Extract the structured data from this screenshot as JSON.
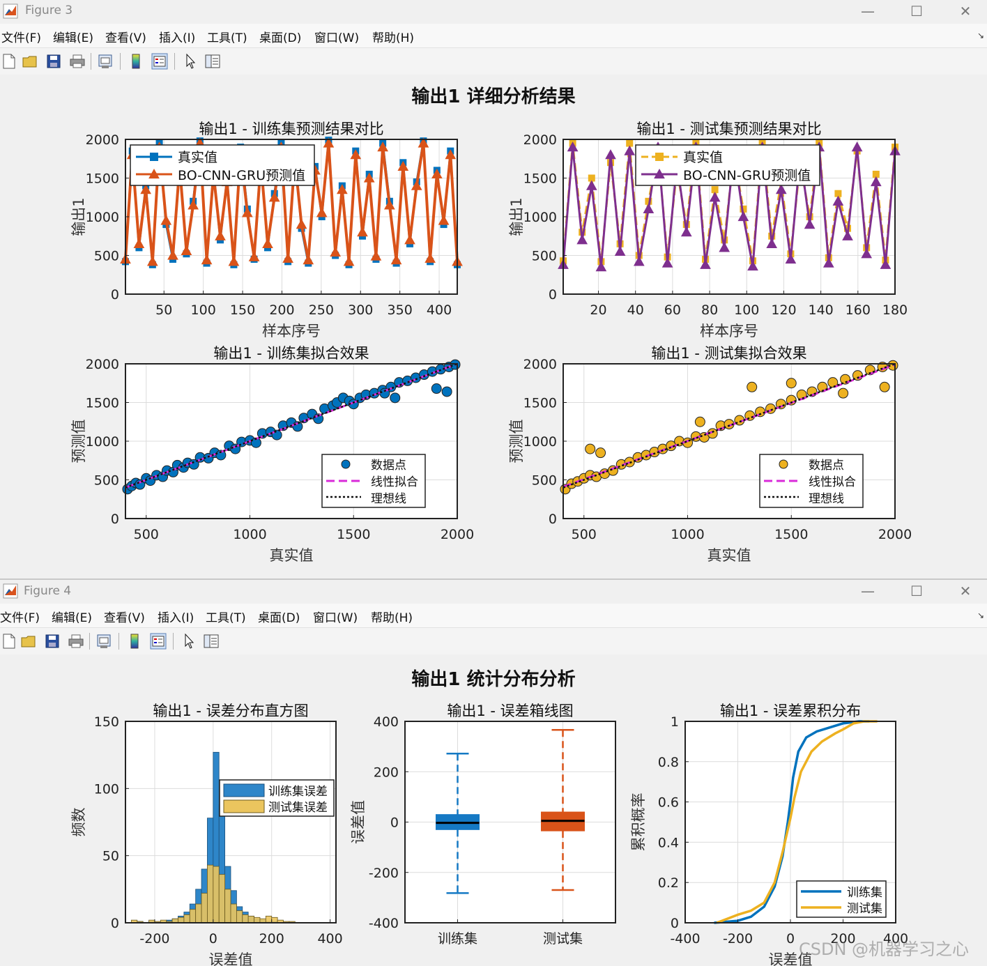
{
  "figure3": {
    "window_title": "Figure 3",
    "menu": [
      "文件(F)",
      "编辑(E)",
      "查看(V)",
      "插入(I)",
      "工具(T)",
      "桌面(D)",
      "窗口(W)",
      "帮助(H)"
    ],
    "suptitle": "输出1 详细分析结果"
  },
  "figure4": {
    "window_title": "Figure 4",
    "menu": [
      "文件(F)",
      "编辑(E)",
      "查看(V)",
      "插入(I)",
      "工具(T)",
      "桌面(D)",
      "窗口(W)",
      "帮助(H)"
    ],
    "suptitle": "输出1 统计分布分析"
  },
  "toolbar_icons": [
    "new-file-icon",
    "open-folder-icon",
    "save-icon",
    "print-icon",
    "print-preview-icon",
    "colorbar-icon",
    "legend-icon",
    "pointer-icon",
    "property-editor-icon"
  ],
  "window_controls": {
    "minimize": "—",
    "maximize": "☐",
    "close": "✕"
  },
  "watermark": "CSDN @机器学习之心",
  "colors": {
    "blue": "#0072BD",
    "orange": "#D95319",
    "yellow": "#EDB120",
    "purple": "#7E2F8E",
    "magenta": "#D92AD9",
    "fill_blue": "#2E86C9",
    "fill_yellow": "#EBC55E",
    "box_blue": "#1579C4",
    "box_orange": "#D95319"
  },
  "chart_data": [
    {
      "id": "train-pred",
      "type": "line",
      "title": "输出1 - 训练集预测结果对比",
      "xlabel": "样本序号",
      "ylabel": "输出1",
      "xlim": [
        1,
        423
      ],
      "ylim": [
        0,
        2000
      ],
      "xticks": [
        50,
        100,
        150,
        200,
        250,
        300,
        350,
        400
      ],
      "yticks": [
        0,
        500,
        1000,
        1500,
        2000
      ],
      "legend": [
        "真实值",
        "BO-CNN-GRU预测值"
      ],
      "series": [
        {
          "name": "真实值",
          "values": [
            420,
            1850,
            600,
            1400,
            380,
            1950,
            900,
            450,
            1700,
            520,
            1200,
            1980,
            400,
            1600,
            700,
            1500,
            380,
            1900,
            1100,
            450,
            1750,
            600,
            1300,
            1950,
            420,
            1800,
            850,
            400,
            1650,
            1000,
            1990,
            500,
            1400,
            380,
            1850,
            750,
            1550,
            450,
            1950,
            1200,
            400,
            1700,
            650,
            1450,
            1980,
            420,
            1600,
            900,
            1850,
            380
          ]
        },
        {
          "name": "BO-CNN-GRU预测值",
          "values": [
            450,
            1800,
            650,
            1350,
            420,
            1900,
            950,
            500,
            1650,
            560,
            1150,
            1950,
            440,
            1550,
            750,
            1450,
            420,
            1850,
            1050,
            480,
            1700,
            650,
            1250,
            1900,
            460,
            1750,
            900,
            440,
            1600,
            1050,
            1950,
            540,
            1350,
            420,
            1800,
            800,
            1500,
            490,
            1900,
            1150,
            440,
            1650,
            700,
            1400,
            1950,
            460,
            1550,
            950,
            1800,
            420
          ]
        }
      ]
    },
    {
      "id": "test-pred",
      "type": "line",
      "title": "输出1 - 测试集预测结果对比",
      "xlabel": "样本序号",
      "ylabel": "输出1",
      "xlim": [
        1,
        180
      ],
      "ylim": [
        0,
        2000
      ],
      "xticks": [
        20,
        40,
        60,
        80,
        100,
        120,
        140,
        160,
        180
      ],
      "yticks": [
        0,
        500,
        1000,
        1500,
        2000
      ],
      "legend": [
        "真实值",
        "BO-CNN-GRU预测值"
      ],
      "series": [
        {
          "name": "真实值",
          "values": [
            430,
            1950,
            800,
            1500,
            420,
            1700,
            650,
            1950,
            500,
            1200,
            1850,
            480,
            1600,
            900,
            1950,
            450,
            1350,
            700,
            1800,
            1100,
            430,
            1950,
            750,
            1450,
            520,
            1700,
            1000,
            1950,
            470,
            1300,
            850,
            1850,
            600,
            1550,
            440,
            1900
          ]
        },
        {
          "name": "BO-CNN-GRU预测值",
          "values": [
            380,
            1900,
            700,
            1400,
            350,
            1800,
            550,
            1850,
            420,
            1100,
            1900,
            400,
            1700,
            800,
            1900,
            380,
            1250,
            600,
            1850,
            1000,
            360,
            1900,
            650,
            1350,
            450,
            1800,
            900,
            1900,
            400,
            1200,
            750,
            1900,
            520,
            1450,
            380,
            1850
          ]
        }
      ]
    },
    {
      "id": "train-fit",
      "type": "scatter",
      "title": "输出1 - 训练集拟合效果",
      "xlabel": "真实值",
      "ylabel": "预测值",
      "xlim": [
        400,
        2000
      ],
      "ylim": [
        0,
        2000
      ],
      "xticks": [
        500,
        1000,
        1500,
        2000
      ],
      "yticks": [
        0,
        500,
        1000,
        1500,
        2000
      ],
      "legend": [
        "数据点",
        "线性拟合",
        "理想线"
      ],
      "points": [
        [
          410,
          380
        ],
        [
          430,
          420
        ],
        [
          450,
          460
        ],
        [
          470,
          440
        ],
        [
          500,
          520
        ],
        [
          520,
          490
        ],
        [
          550,
          560
        ],
        [
          580,
          540
        ],
        [
          600,
          620
        ],
        [
          630,
          600
        ],
        [
          650,
          690
        ],
        [
          680,
          660
        ],
        [
          700,
          720
        ],
        [
          730,
          700
        ],
        [
          760,
          790
        ],
        [
          800,
          780
        ],
        [
          830,
          850
        ],
        [
          860,
          820
        ],
        [
          900,
          940
        ],
        [
          930,
          900
        ],
        [
          960,
          990
        ],
        [
          1000,
          1010
        ],
        [
          1030,
          980
        ],
        [
          1060,
          1100
        ],
        [
          1100,
          1120
        ],
        [
          1130,
          1080
        ],
        [
          1160,
          1200
        ],
        [
          1200,
          1240
        ],
        [
          1230,
          1190
        ],
        [
          1260,
          1300
        ],
        [
          1300,
          1350
        ],
        [
          1330,
          1290
        ],
        [
          1360,
          1420
        ],
        [
          1400,
          1460
        ],
        [
          1420,
          1500
        ],
        [
          1450,
          1560
        ],
        [
          1480,
          1520
        ],
        [
          1500,
          1480
        ],
        [
          1530,
          1560
        ],
        [
          1560,
          1600
        ],
        [
          1600,
          1620
        ],
        [
          1640,
          1660
        ],
        [
          1680,
          1700
        ],
        [
          1720,
          1760
        ],
        [
          1760,
          1780
        ],
        [
          1800,
          1820
        ],
        [
          1840,
          1860
        ],
        [
          1880,
          1900
        ],
        [
          1920,
          1930
        ],
        [
          1960,
          1960
        ],
        [
          1990,
          1990
        ],
        [
          1950,
          1640
        ],
        [
          1900,
          1680
        ],
        [
          1700,
          1560
        ],
        [
          1650,
          1620
        ]
      ],
      "fit": [
        [
          400,
          400
        ],
        [
          2000,
          2000
        ]
      ],
      "ideal": [
        [
          400,
          400
        ],
        [
          2000,
          2000
        ]
      ]
    },
    {
      "id": "test-fit",
      "type": "scatter",
      "title": "输出1 - 测试集拟合效果",
      "xlabel": "真实值",
      "ylabel": "预测值",
      "xlim": [
        400,
        2000
      ],
      "ylim": [
        0,
        2000
      ],
      "xticks": [
        500,
        1000,
        1500,
        2000
      ],
      "yticks": [
        0,
        500,
        1000,
        1500,
        2000
      ],
      "legend": [
        "数据点",
        "线性拟合",
        "理想线"
      ],
      "points": [
        [
          410,
          380
        ],
        [
          440,
          450
        ],
        [
          470,
          480
        ],
        [
          500,
          520
        ],
        [
          530,
          560
        ],
        [
          560,
          540
        ],
        [
          600,
          580
        ],
        [
          640,
          620
        ],
        [
          680,
          700
        ],
        [
          720,
          730
        ],
        [
          760,
          790
        ],
        [
          800,
          820
        ],
        [
          840,
          860
        ],
        [
          880,
          900
        ],
        [
          920,
          940
        ],
        [
          960,
          1000
        ],
        [
          1000,
          980
        ],
        [
          1040,
          1060
        ],
        [
          1080,
          1050
        ],
        [
          1120,
          1100
        ],
        [
          1160,
          1200
        ],
        [
          1200,
          1220
        ],
        [
          1250,
          1270
        ],
        [
          1300,
          1330
        ],
        [
          1350,
          1380
        ],
        [
          1400,
          1420
        ],
        [
          1450,
          1480
        ],
        [
          1500,
          1530
        ],
        [
          1550,
          1600
        ],
        [
          1600,
          1640
        ],
        [
          1650,
          1700
        ],
        [
          1700,
          1760
        ],
        [
          1760,
          1800
        ],
        [
          1820,
          1850
        ],
        [
          1880,
          1920
        ],
        [
          1940,
          1960
        ],
        [
          1990,
          1980
        ],
        [
          530,
          900
        ],
        [
          580,
          850
        ],
        [
          1060,
          1250
        ],
        [
          1310,
          1700
        ],
        [
          1500,
          1750
        ],
        [
          1750,
          1620
        ],
        [
          1950,
          1700
        ]
      ],
      "fit": [
        [
          400,
          410
        ],
        [
          2000,
          1990
        ]
      ],
      "ideal": [
        [
          400,
          400
        ],
        [
          2000,
          2000
        ]
      ]
    },
    {
      "id": "error-hist",
      "type": "bar",
      "title": "输出1 - 误差分布直方图",
      "xlabel": "误差值",
      "ylabel": "频数",
      "xlim": [
        -300,
        420
      ],
      "ylim": [
        0,
        150
      ],
      "xticks": [
        -200,
        0,
        200,
        400
      ],
      "yticks": [
        0,
        50,
        100,
        150
      ],
      "legend": [
        "训练集误差",
        "测试集误差"
      ],
      "bin_width": 20,
      "bins": [
        -280,
        -260,
        -240,
        -220,
        -200,
        -180,
        -160,
        -140,
        -120,
        -100,
        -80,
        -60,
        -40,
        -20,
        0,
        20,
        40,
        60,
        80,
        100,
        120,
        140,
        160,
        180,
        200,
        220,
        240,
        260,
        280,
        300,
        320
      ],
      "series": [
        {
          "name": "训练集误差",
          "values": [
            0,
            1,
            0,
            1,
            0,
            1,
            2,
            3,
            5,
            8,
            14,
            25,
            40,
            78,
            127,
            88,
            42,
            24,
            12,
            8,
            5,
            3,
            2,
            1,
            1,
            0,
            0,
            0,
            0,
            0,
            0
          ]
        },
        {
          "name": "测试集误差",
          "values": [
            2,
            1,
            0,
            2,
            1,
            2,
            1,
            3,
            4,
            6,
            10,
            14,
            22,
            43,
            42,
            36,
            25,
            14,
            9,
            6,
            5,
            4,
            3,
            5,
            4,
            2,
            1,
            1,
            0,
            0,
            0
          ]
        }
      ]
    },
    {
      "id": "error-box",
      "type": "box",
      "title": "输出1 - 误差箱线图",
      "xlabel": "",
      "ylabel": "误差值",
      "ylim": [
        -400,
        400
      ],
      "yticks": [
        -400,
        -200,
        0,
        200,
        400
      ],
      "categories": [
        "训练集",
        "测试集"
      ],
      "boxes": [
        {
          "name": "训练集",
          "q1": -30,
          "median": -3,
          "q3": 30,
          "whisker_low": -282,
          "whisker_high": 272
        },
        {
          "name": "测试集",
          "q1": -35,
          "median": 5,
          "q3": 40,
          "whisker_low": -270,
          "whisker_high": 366
        }
      ]
    },
    {
      "id": "error-cdf",
      "type": "line",
      "title": "输出1 - 误差累积分布",
      "xlabel": "误差值",
      "ylabel": "累积概率",
      "xlim": [
        -400,
        400
      ],
      "ylim": [
        0,
        1
      ],
      "xticks": [
        -400,
        -200,
        0,
        200,
        400
      ],
      "yticks": [
        0,
        0.2,
        0.4,
        0.6,
        0.8,
        1
      ],
      "legend": [
        "训练集",
        "测试集"
      ],
      "series": [
        {
          "name": "训练集",
          "x": [
            -290,
            -200,
            -150,
            -100,
            -60,
            -30,
            -10,
            0,
            10,
            30,
            60,
            100,
            150,
            200,
            260,
            300
          ],
          "values": [
            0,
            0.01,
            0.03,
            0.08,
            0.18,
            0.33,
            0.5,
            0.6,
            0.72,
            0.85,
            0.92,
            0.95,
            0.97,
            0.99,
            1.0,
            1.0
          ]
        },
        {
          "name": "测试集",
          "x": [
            -280,
            -240,
            -200,
            -150,
            -100,
            -60,
            -30,
            0,
            15,
            40,
            80,
            120,
            170,
            200,
            240,
            280,
            330
          ],
          "values": [
            0,
            0.02,
            0.04,
            0.06,
            0.1,
            0.2,
            0.35,
            0.52,
            0.62,
            0.75,
            0.85,
            0.9,
            0.94,
            0.96,
            0.99,
            1.0,
            1.0
          ]
        }
      ]
    }
  ]
}
